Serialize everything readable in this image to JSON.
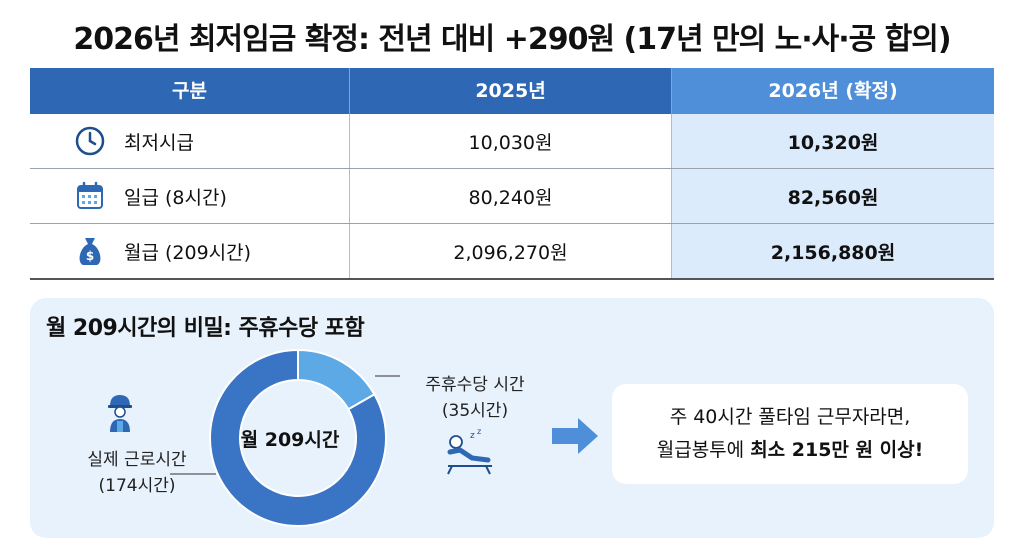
{
  "title": "2026년 최저임금 확정: 전년 대비 +290원 (17년 만의 노·사·공 합의)",
  "table": {
    "headers": [
      "구분",
      "2025년",
      "2026년 (확정)"
    ],
    "rows": [
      {
        "icon": "clock-icon",
        "label": "최저시급",
        "y2025": "10,030원",
        "y2026": "10,320원"
      },
      {
        "icon": "calendar-icon",
        "label": "일급 (8시간)",
        "y2025": "80,240원",
        "y2026": "82,560원"
      },
      {
        "icon": "money-bag-icon",
        "label": "월급 (209시간)",
        "y2025": "2,096,270원",
        "y2026": "2,156,880원"
      }
    ]
  },
  "breakdown": {
    "title": "월 209시간의 비밀: 주휴수당 포함",
    "center_label": "월 209시간",
    "actual_label_1": "실제 근로시간",
    "actual_label_2": "(174시간)",
    "actual_hours": 174,
    "weekly_label_1": "주휴수당 시간",
    "weekly_label_2": "(35시간)",
    "weekly_hours": 35,
    "colors": {
      "actual": "#3a74c4",
      "weekly": "#5ca9e6"
    }
  },
  "message": {
    "line1": "주 40시간 풀타임 근무자라면,",
    "line2_pre": "월급봉투에 ",
    "line2_bold": "최소 215만 원 이상!"
  },
  "icons": [
    "clock-icon",
    "calendar-icon",
    "money-bag-icon",
    "worker-icon",
    "resting-person-icon",
    "arrow-right-icon"
  ]
}
